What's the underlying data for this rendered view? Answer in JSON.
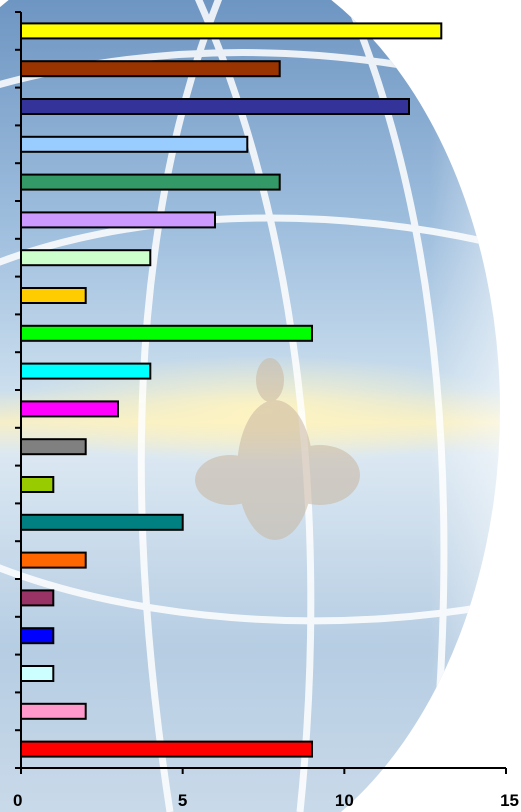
{
  "chart_data": {
    "type": "bar",
    "orientation": "horizontal",
    "categories": [
      "",
      "",
      "",
      "",
      "",
      "",
      "",
      "",
      "",
      "",
      "",
      "",
      "",
      "",
      "",
      "",
      "",
      "",
      "",
      ""
    ],
    "values": [
      13,
      8,
      12,
      7,
      8,
      6,
      4,
      2,
      9,
      4,
      3,
      2,
      1,
      5,
      2,
      1,
      1,
      1,
      2,
      9
    ],
    "bar_colors": [
      "#FFFF00",
      "#993300",
      "#333399",
      "#99CCFF",
      "#339966",
      "#CC99FF",
      "#CCFFCC",
      "#FFCC00",
      "#00FF00",
      "#00FFFF",
      "#FF00FF",
      "#808080",
      "#99CC00",
      "#008080",
      "#FF6600",
      "#993366",
      "#0000FF",
      "#CCFFFF",
      "#FF99CC",
      "#FF0000"
    ],
    "xlim": [
      0,
      15
    ],
    "x_ticks": [
      "0",
      "5",
      "10",
      "15"
    ],
    "grid": false,
    "title": "",
    "xlabel": "",
    "ylabel": ""
  },
  "background": {
    "description_icon": "globe-watermark-icon",
    "sky_top": "#4A7FB8",
    "sky_mid": "#9CC0DE",
    "glow": "#F5E6A0",
    "lines": "#FFFFFF"
  }
}
